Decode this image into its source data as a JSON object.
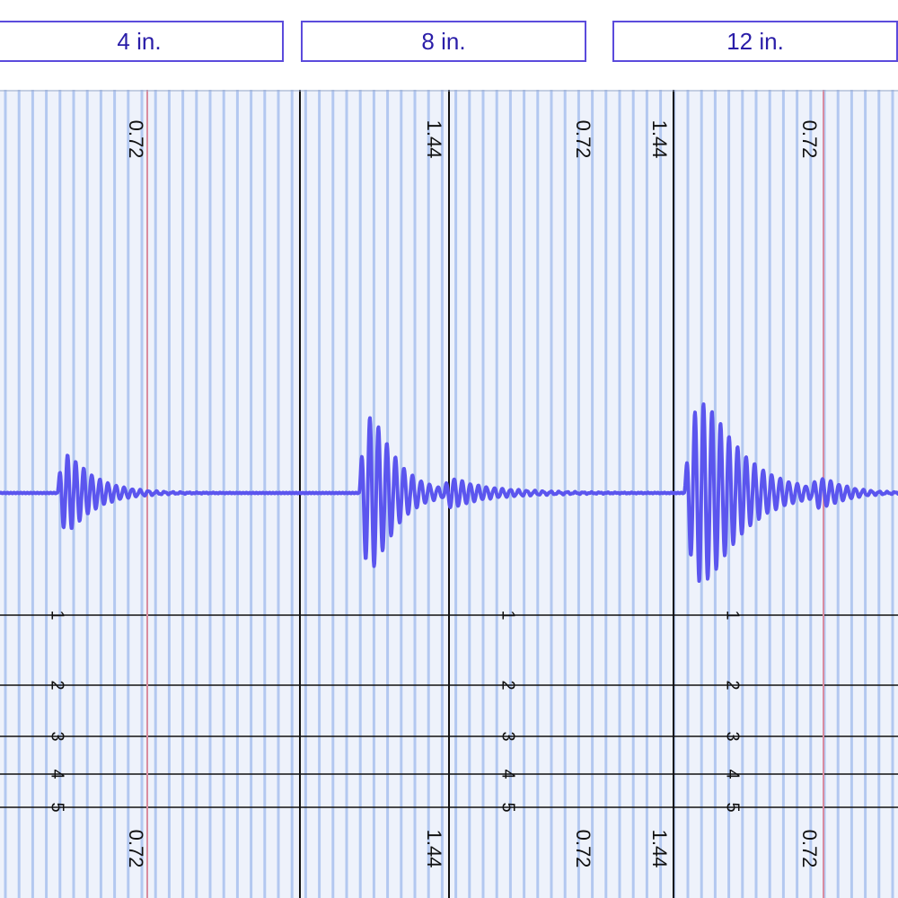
{
  "tabs": [
    {
      "label": "4 in."
    },
    {
      "label": "8 in."
    },
    {
      "label": "12 in."
    }
  ],
  "time_markers": {
    "top": [
      "0.72",
      "1.44",
      "0.72",
      "1.44",
      "0.72"
    ],
    "bottom": [
      "0.72",
      "1.44",
      "0.72",
      "1.44",
      "0.72"
    ]
  },
  "amplitude_scale_labels": [
    "1",
    "2",
    "3",
    "4",
    "5"
  ],
  "colors": {
    "tab_border": "#5b4bdc",
    "tab_text": "#2a1da8",
    "waveform": "#5b55ee",
    "grid_background": "#eef2fb",
    "grid_line": "#a9c1ef",
    "marker_line": "#d98ca0",
    "axis_line": "#111111"
  }
}
